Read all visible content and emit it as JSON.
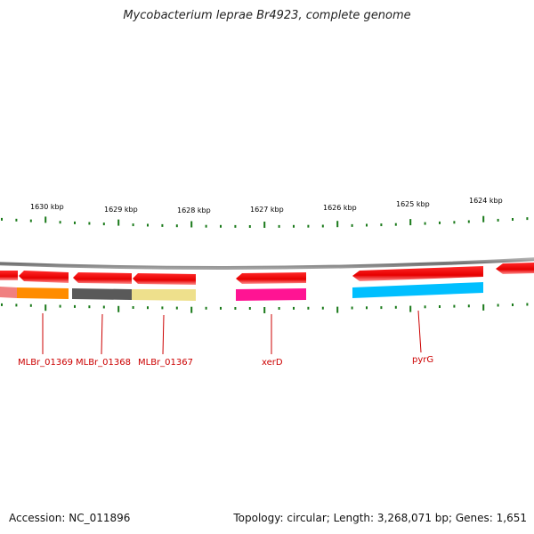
{
  "title": "Mycobacterium leprae Br4923, complete genome",
  "footer": {
    "accession": "Accession: NC_011896",
    "summary": "Topology: circular; Length: 3,268,071 bp; Genes: 1,651"
  },
  "colors": {
    "backbone": "#808080",
    "gene_arrow": "#ff0000",
    "tick": "#1a7a1a",
    "label": "#cc0000"
  },
  "kbp_labels": [
    "1630 kbp",
    "1629 kbp",
    "1628 kbp",
    "1627 kbp",
    "1626 kbp",
    "1625 kbp",
    "1624 kbp"
  ],
  "gene_labels": [
    "MLBr_01369",
    "MLBr_01368",
    "MLBr_01367",
    "xerD",
    "pyrG"
  ],
  "segment_colors": [
    "#f08080",
    "#ff8c00",
    "#595959",
    "#eee08c",
    "#ff1493",
    "#00bfff"
  ]
}
